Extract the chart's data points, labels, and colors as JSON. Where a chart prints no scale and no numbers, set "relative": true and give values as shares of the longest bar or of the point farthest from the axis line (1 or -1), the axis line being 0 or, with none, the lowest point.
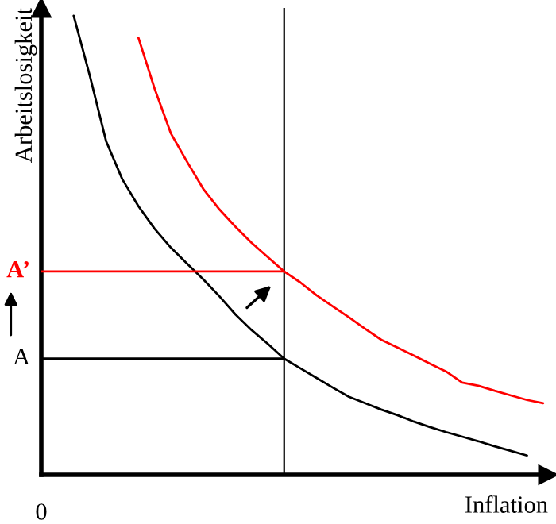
{
  "chart_data": {
    "type": "line",
    "relative": true,
    "xlabel": "Inflation",
    "ylabel": "Arbeitslosigkeit",
    "categories": [
      null,
      null,
      null,
      null,
      null,
      null,
      null,
      null,
      null,
      null,
      null,
      null,
      null,
      null,
      null,
      null,
      null,
      null,
      null,
      null,
      null,
      null,
      null,
      null,
      null,
      null,
      null,
      null,
      null,
      null,
      null,
      null
    ],
    "series": [
      {
        "color": "#000000",
        "values": [
          null,
          null,
          1.0,
          0.869,
          0.727,
          0.644,
          0.585,
          0.536,
          0.495,
          0.46,
          0.426,
          0.389,
          0.349,
          0.315,
          0.285,
          0.253,
          0.232,
          0.211,
          0.19,
          0.17,
          0.156,
          0.142,
          0.13,
          0.116,
          0.104,
          0.093,
          0.083,
          0.073,
          0.062,
          0.052,
          0.042,
          null
        ]
      },
      {
        "color": "#ff0000",
        "values": [
          null,
          null,
          null,
          null,
          null,
          null,
          0.952,
          0.841,
          0.744,
          0.682,
          0.623,
          0.578,
          0.54,
          0.505,
          0.474,
          0.443,
          0.419,
          0.391,
          0.367,
          0.343,
          0.318,
          0.294,
          0.277,
          0.26,
          0.242,
          0.225,
          0.201,
          0.194,
          0.183,
          0.173,
          0.163,
          0.156
        ]
      },
      {
        "color": "#000000",
        "values": [
          0.253,
          0.253,
          0.253,
          0.253,
          0.253,
          0.253,
          0.253,
          0.253,
          0.253,
          0.253,
          0.253,
          0.253,
          0.253,
          0.253,
          0.253,
          0.253,
          null,
          null,
          null,
          null,
          null,
          null,
          null,
          null,
          null,
          null,
          null,
          null,
          null,
          null,
          null,
          null
        ]
      },
      {
        "color": "#ff0000",
        "values": [
          0.443,
          0.443,
          0.443,
          0.443,
          0.443,
          0.443,
          0.443,
          0.443,
          0.443,
          0.443,
          0.443,
          0.443,
          0.443,
          0.443,
          0.443,
          0.443,
          null,
          null,
          null,
          null,
          null,
          null,
          null,
          null,
          null,
          null,
          null,
          null,
          null,
          null,
          null,
          null
        ]
      }
    ],
    "annotations": [
      "A",
      "A’",
      "0"
    ]
  }
}
